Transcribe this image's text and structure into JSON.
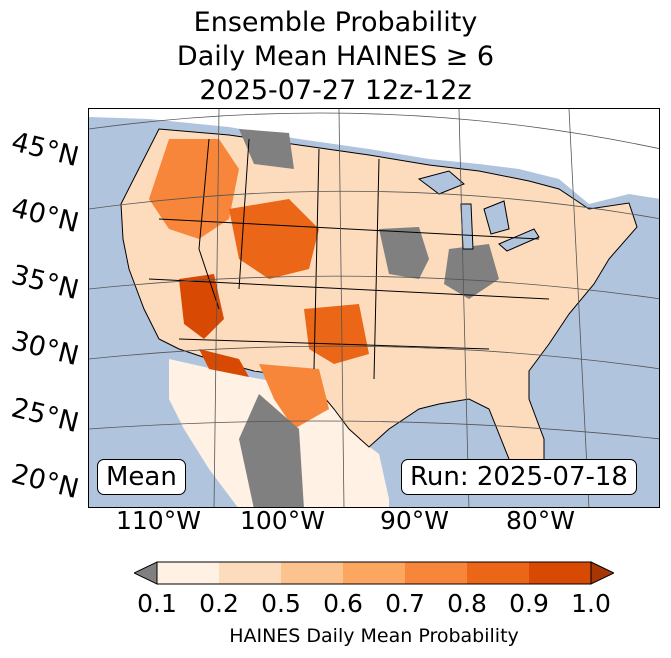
{
  "title": {
    "line1": "Ensemble Probability",
    "line2": "Daily Mean HAINES ≥ 6",
    "line3": "2025-07-27 12z-12z"
  },
  "lat_labels": [
    "45°N",
    "40°N",
    "35°N",
    "30°N",
    "25°N",
    "20°N"
  ],
  "lon_labels": [
    "110°W",
    "100°W",
    "90°W",
    "80°W"
  ],
  "boxes": {
    "left": "Mean",
    "right": "Run: 2025-07-18"
  },
  "colorbar": {
    "ticks": [
      "0.1",
      "0.2",
      "0.5",
      "0.6",
      "0.7",
      "0.8",
      "0.9",
      "1.0"
    ],
    "colors": [
      "#fff1e4",
      "#fddcbe",
      "#fdc38f",
      "#fca65f",
      "#f8863a",
      "#eb6616",
      "#d84a04"
    ],
    "under_color": "#808080",
    "over_color": "#a63603",
    "label": "HAINES Daily Mean Probability"
  },
  "colors": {
    "water": "#b0c4de",
    "land": "#ffffff",
    "nodata": "#808080"
  }
}
